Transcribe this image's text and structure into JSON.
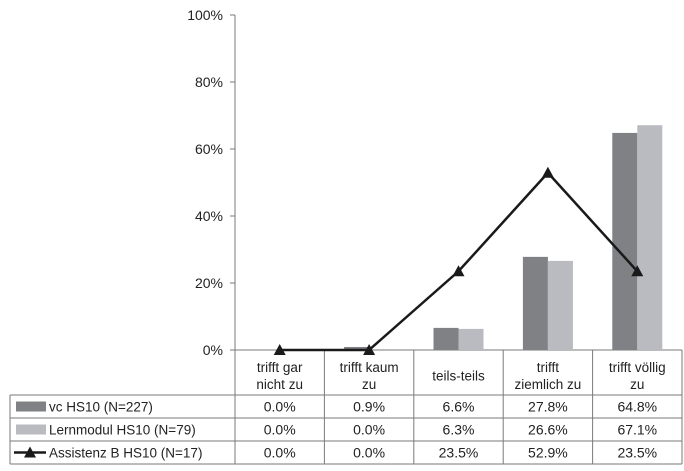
{
  "chart_data": {
    "type": "bar",
    "categories": [
      [
        "trifft gar",
        "nicht zu"
      ],
      [
        "trifft kaum",
        "zu"
      ],
      [
        "teils-teils"
      ],
      [
        "trifft",
        "ziemlich zu"
      ],
      [
        "trifft völlig",
        "zu"
      ]
    ],
    "y_ticks": [
      "0%",
      "20%",
      "40%",
      "60%",
      "80%",
      "100%"
    ],
    "ylim": [
      0,
      100
    ],
    "grid": false,
    "legend": "data-table-left",
    "series": [
      {
        "name": "vc HS10 (N=227)",
        "type": "bar",
        "color": "#7f8185",
        "values": [
          0.0,
          0.9,
          6.6,
          27.8,
          64.8
        ],
        "labels": [
          "0.0%",
          "0.9%",
          "6.6%",
          "27.8%",
          "64.8%"
        ]
      },
      {
        "name": "Lernmodul HS10 (N=79)",
        "type": "bar",
        "color": "#b9bbc0",
        "values": [
          0.0,
          0.0,
          6.3,
          26.6,
          67.1
        ],
        "labels": [
          "0.0%",
          "0.0%",
          "6.3%",
          "26.6%",
          "67.1%"
        ]
      },
      {
        "name": "Assistenz B HS10 (N=17)",
        "type": "line",
        "marker": "triangle",
        "color": "#1a1a1a",
        "values": [
          0.0,
          0.0,
          23.5,
          52.9,
          23.5
        ],
        "labels": [
          "0.0%",
          "0.0%",
          "23.5%",
          "52.9%",
          "23.5%"
        ]
      }
    ]
  }
}
